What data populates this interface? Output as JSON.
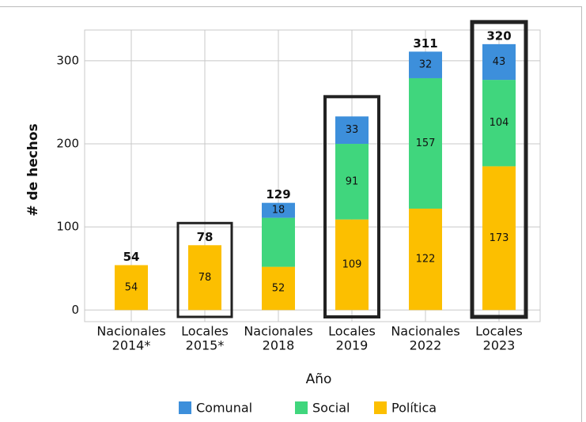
{
  "chart_data": {
    "type": "stacked_bar",
    "x_label": "Año",
    "y_label": "# de hechos",
    "categories": [
      [
        "Nacionales",
        "2014*"
      ],
      [
        "Locales",
        "2015*"
      ],
      [
        "Nacionales",
        "2018"
      ],
      [
        "Locales",
        "2019"
      ],
      [
        "Nacionales",
        "2022"
      ],
      [
        "Locales",
        "2023"
      ]
    ],
    "series": [
      {
        "name": "Comunal",
        "color": "#3d8fdb",
        "values": [
          null,
          null,
          18,
          33,
          32,
          43
        ]
      },
      {
        "name": "Social",
        "color": "#40d67d",
        "values": [
          null,
          null,
          59,
          91,
          157,
          104
        ],
        "value_labels": [
          null,
          null,
          null,
          "91",
          "157",
          "104"
        ]
      },
      {
        "name": "Política",
        "color": "#fcbf00",
        "values": [
          54,
          78,
          52,
          109,
          122,
          173
        ]
      }
    ],
    "totals": [
      54,
      78,
      129,
      null,
      311,
      320
    ],
    "highlighted": [
      1,
      3,
      5
    ],
    "ylim": [
      -14,
      337
    ],
    "yticks": [
      0,
      100,
      200,
      300
    ],
    "grid": true,
    "legend": "bottom"
  }
}
